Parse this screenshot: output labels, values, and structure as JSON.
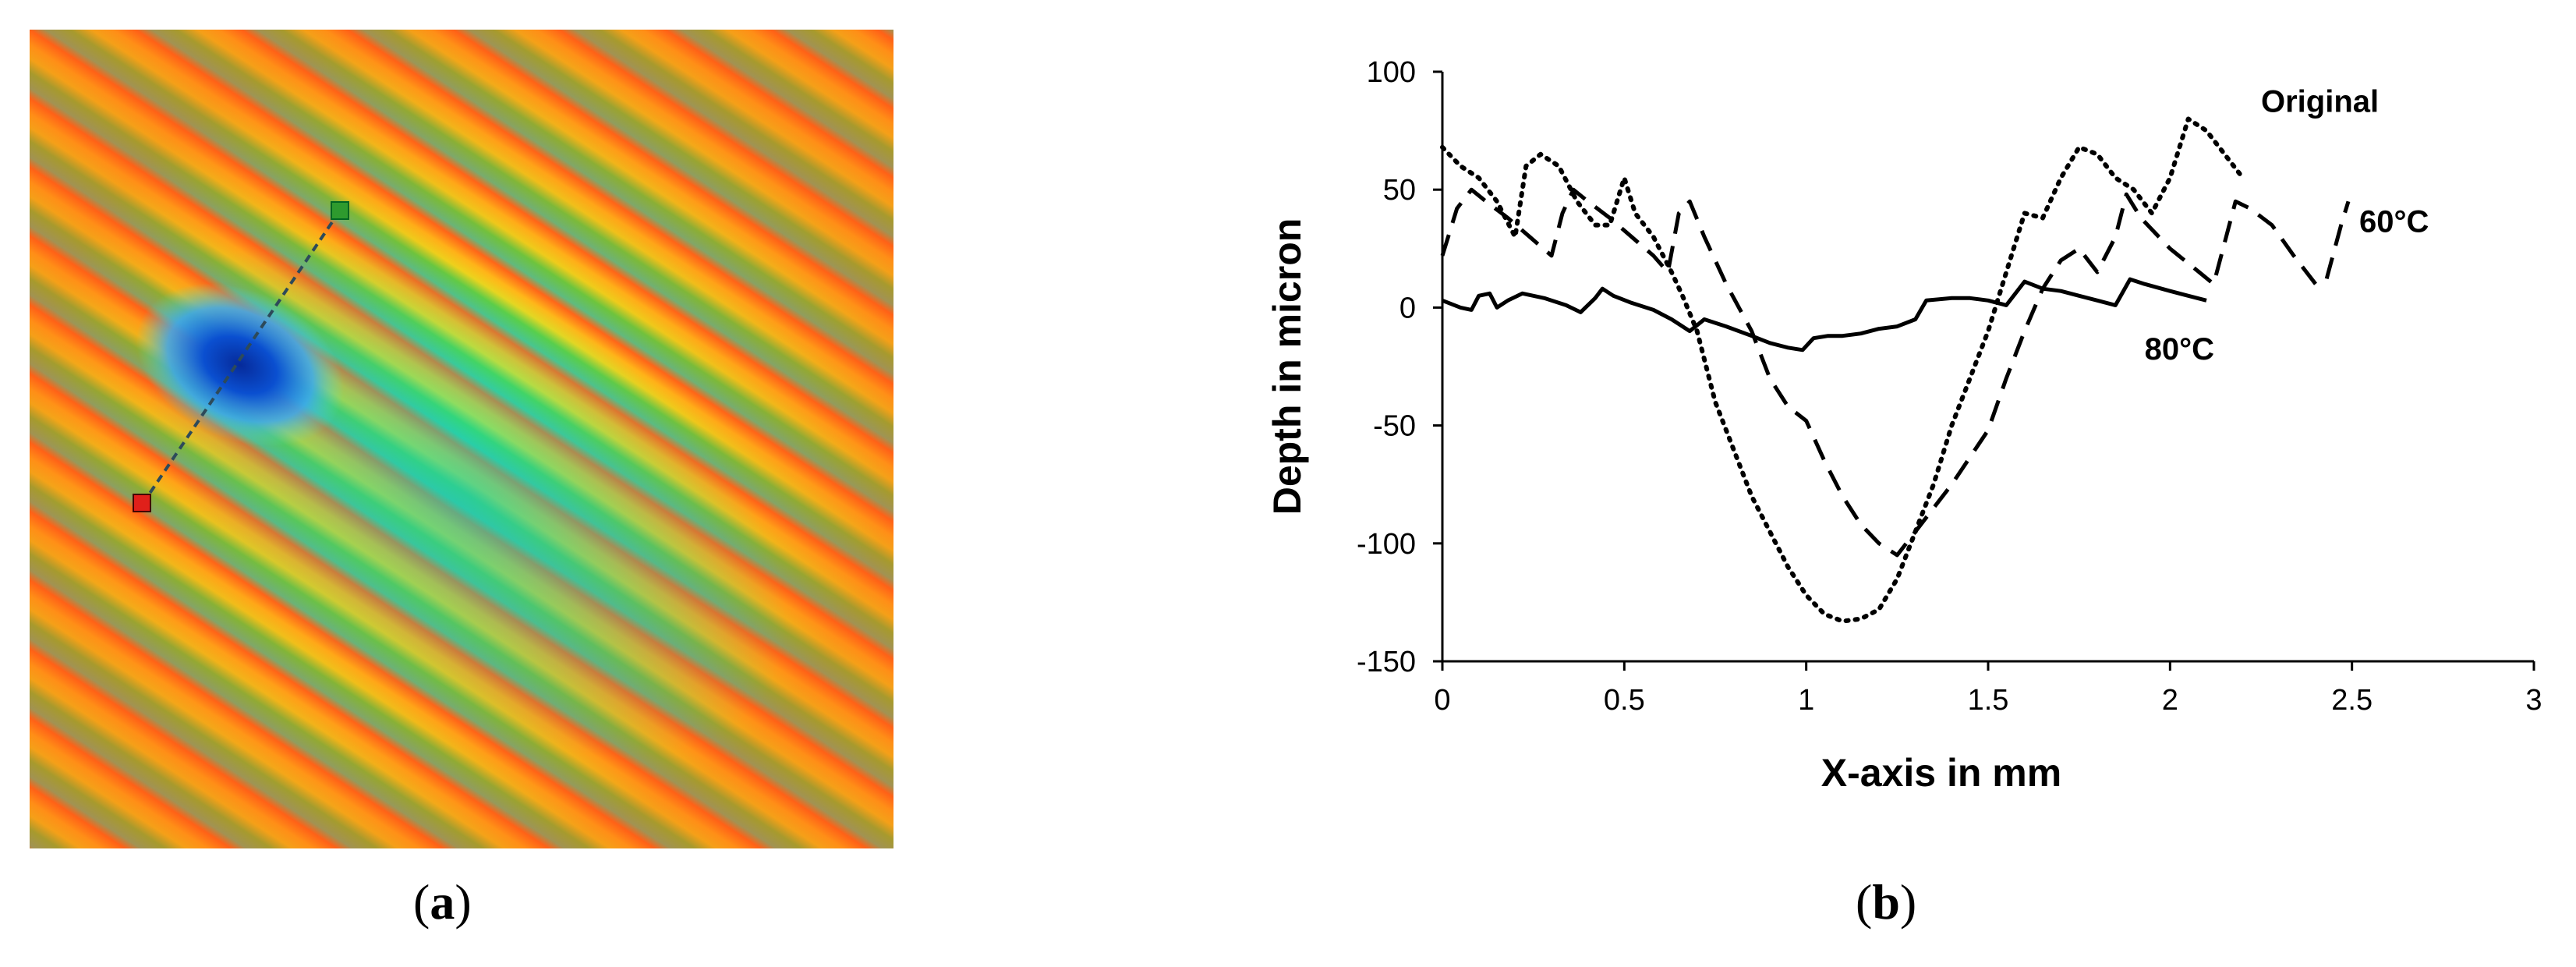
{
  "captions": {
    "a_open": "(",
    "a_letter": "a",
    "a_close": ")",
    "b_open": "(",
    "b_letter": "b",
    "b_close": ")"
  },
  "colormap": {
    "stripe_colors": [
      "#ff6a1a",
      "#ffcf1a",
      "#e8f51e",
      "#3ce84b",
      "#2fd8a0"
    ],
    "defect_color": "#0a4fd0",
    "profile_line_color": "#2d4a5a",
    "start_marker_color": "#e0201a",
    "end_marker_color": "#2e9a2e"
  },
  "chart_data": {
    "type": "line",
    "xlabel": "X-axis in mm",
    "ylabel": "Depth in micron",
    "xlim": [
      0,
      3
    ],
    "ylim": [
      -150,
      100
    ],
    "xticks": [
      0,
      0.5,
      1,
      1.5,
      2,
      2.5,
      3
    ],
    "yticks": [
      100,
      50,
      0,
      -50,
      -100,
      -150
    ],
    "grid": false,
    "series": [
      {
        "name": "Original",
        "style": "dotted",
        "points": [
          [
            0,
            68
          ],
          [
            0.05,
            60
          ],
          [
            0.1,
            55
          ],
          [
            0.15,
            45
          ],
          [
            0.2,
            30
          ],
          [
            0.23,
            60
          ],
          [
            0.27,
            65
          ],
          [
            0.32,
            60
          ],
          [
            0.37,
            45
          ],
          [
            0.42,
            35
          ],
          [
            0.46,
            35
          ],
          [
            0.5,
            55
          ],
          [
            0.53,
            40
          ],
          [
            0.58,
            30
          ],
          [
            0.63,
            15
          ],
          [
            0.66,
            5
          ],
          [
            0.7,
            -10
          ],
          [
            0.75,
            -40
          ],
          [
            0.8,
            -60
          ],
          [
            0.85,
            -80
          ],
          [
            0.9,
            -95
          ],
          [
            0.95,
            -110
          ],
          [
            1.0,
            -122
          ],
          [
            1.05,
            -130
          ],
          [
            1.1,
            -133
          ],
          [
            1.15,
            -132
          ],
          [
            1.2,
            -128
          ],
          [
            1.25,
            -115
          ],
          [
            1.3,
            -95
          ],
          [
            1.35,
            -75
          ],
          [
            1.4,
            -50
          ],
          [
            1.45,
            -30
          ],
          [
            1.5,
            -10
          ],
          [
            1.55,
            15
          ],
          [
            1.6,
            40
          ],
          [
            1.65,
            38
          ],
          [
            1.7,
            55
          ],
          [
            1.75,
            68
          ],
          [
            1.8,
            65
          ],
          [
            1.85,
            55
          ],
          [
            1.9,
            50
          ],
          [
            1.95,
            40
          ],
          [
            2.0,
            55
          ],
          [
            2.05,
            80
          ],
          [
            2.1,
            75
          ],
          [
            2.15,
            65
          ],
          [
            2.2,
            55
          ]
        ]
      },
      {
        "name": "60°C",
        "style": "dashed",
        "points": [
          [
            0,
            22
          ],
          [
            0.04,
            42
          ],
          [
            0.08,
            50
          ],
          [
            0.12,
            45
          ],
          [
            0.18,
            38
          ],
          [
            0.24,
            30
          ],
          [
            0.3,
            22
          ],
          [
            0.33,
            40
          ],
          [
            0.36,
            50
          ],
          [
            0.4,
            45
          ],
          [
            0.46,
            38
          ],
          [
            0.52,
            30
          ],
          [
            0.58,
            22
          ],
          [
            0.62,
            15
          ],
          [
            0.65,
            40
          ],
          [
            0.68,
            45
          ],
          [
            0.72,
            30
          ],
          [
            0.78,
            10
          ],
          [
            0.85,
            -10
          ],
          [
            0.9,
            -30
          ],
          [
            0.95,
            -42
          ],
          [
            1.0,
            -48
          ],
          [
            1.05,
            -65
          ],
          [
            1.1,
            -80
          ],
          [
            1.15,
            -92
          ],
          [
            1.2,
            -100
          ],
          [
            1.25,
            -105
          ],
          [
            1.3,
            -95
          ],
          [
            1.4,
            -75
          ],
          [
            1.5,
            -52
          ],
          [
            1.55,
            -30
          ],
          [
            1.6,
            -10
          ],
          [
            1.65,
            8
          ],
          [
            1.7,
            20
          ],
          [
            1.75,
            25
          ],
          [
            1.8,
            15
          ],
          [
            1.85,
            30
          ],
          [
            1.88,
            48
          ],
          [
            1.92,
            38
          ],
          [
            2.0,
            25
          ],
          [
            2.08,
            15
          ],
          [
            2.12,
            10
          ],
          [
            2.18,
            45
          ],
          [
            2.22,
            42
          ],
          [
            2.28,
            35
          ],
          [
            2.34,
            22
          ],
          [
            2.4,
            10
          ],
          [
            2.43,
            12
          ],
          [
            2.47,
            35
          ],
          [
            2.49,
            45
          ]
        ]
      },
      {
        "name": "80°C",
        "style": "solid",
        "points": [
          [
            0,
            3
          ],
          [
            0.05,
            0
          ],
          [
            0.08,
            -1
          ],
          [
            0.1,
            5
          ],
          [
            0.13,
            6
          ],
          [
            0.15,
            0
          ],
          [
            0.18,
            3
          ],
          [
            0.22,
            6
          ],
          [
            0.28,
            4
          ],
          [
            0.34,
            1
          ],
          [
            0.38,
            -2
          ],
          [
            0.42,
            4
          ],
          [
            0.44,
            8
          ],
          [
            0.47,
            5
          ],
          [
            0.52,
            2
          ],
          [
            0.58,
            -1
          ],
          [
            0.63,
            -5
          ],
          [
            0.68,
            -10
          ],
          [
            0.72,
            -5
          ],
          [
            0.78,
            -8
          ],
          [
            0.85,
            -12
          ],
          [
            0.9,
            -15
          ],
          [
            0.95,
            -17
          ],
          [
            0.99,
            -18
          ],
          [
            1.02,
            -13
          ],
          [
            1.06,
            -12
          ],
          [
            1.1,
            -12
          ],
          [
            1.15,
            -11
          ],
          [
            1.2,
            -9
          ],
          [
            1.25,
            -8
          ],
          [
            1.3,
            -5
          ],
          [
            1.33,
            3
          ],
          [
            1.4,
            4
          ],
          [
            1.45,
            4
          ],
          [
            1.5,
            3
          ],
          [
            1.55,
            1
          ],
          [
            1.6,
            11
          ],
          [
            1.65,
            8
          ],
          [
            1.7,
            7
          ],
          [
            1.75,
            5
          ],
          [
            1.8,
            3
          ],
          [
            1.85,
            1
          ],
          [
            1.89,
            12
          ],
          [
            1.93,
            10
          ],
          [
            2.0,
            7
          ],
          [
            2.05,
            5
          ],
          [
            2.1,
            3
          ]
        ]
      }
    ],
    "annotations": [
      {
        "text": "Original",
        "x": 2.25,
        "y": 83
      },
      {
        "text": "60°C",
        "x": 2.52,
        "y": 32
      },
      {
        "text": "80°C",
        "x": 1.93,
        "y": -22
      }
    ]
  }
}
